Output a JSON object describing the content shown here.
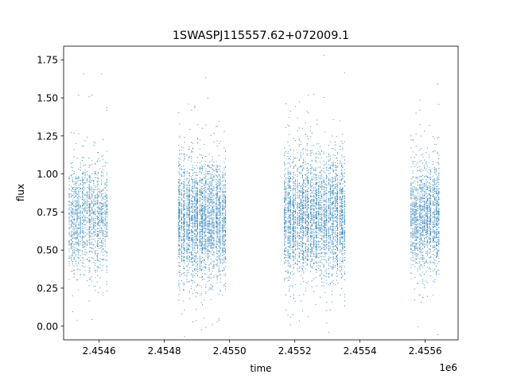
{
  "chart_data": {
    "type": "scatter",
    "title": "1SWASPJ115557.62+072009.1",
    "xlabel": "time",
    "ylabel": "flux",
    "x_offset_label": "1e6",
    "x_scale": 1000000,
    "xlim": [
      2454491,
      2455701
    ],
    "ylim": [
      -0.09,
      1.84
    ],
    "x_ticks": [
      2454600,
      2454800,
      2455000,
      2455200,
      2455400,
      2455600
    ],
    "x_tick_labels": [
      "2.4546",
      "2.4548",
      "2.4550",
      "2.4552",
      "2.4554",
      "2.4556"
    ],
    "y_ticks": [
      0.0,
      0.25,
      0.5,
      0.75,
      1.0,
      1.25,
      1.5,
      1.75
    ],
    "y_tick_labels": [
      "0.00",
      "0.25",
      "0.50",
      "0.75",
      "1.00",
      "1.25",
      "1.50",
      "1.75"
    ],
    "grid": false,
    "marker_color": "#1f77b4",
    "series": [
      {
        "values": [
          {
            "x_range": [
              2454505,
              2454625
            ],
            "y_center": 0.72,
            "spread": 0.18,
            "count": 1500
          },
          {
            "x_range": [
              2454840,
              2454990
            ],
            "y_center": 0.7,
            "spread": 0.2,
            "count": 3000
          },
          {
            "x_range": [
              2455165,
              2455355
            ],
            "y_center": 0.72,
            "spread": 0.2,
            "count": 3500
          },
          {
            "x_range": [
              2455555,
              2455645
            ],
            "y_center": 0.72,
            "spread": 0.17,
            "count": 1600
          }
        ]
      }
    ]
  }
}
